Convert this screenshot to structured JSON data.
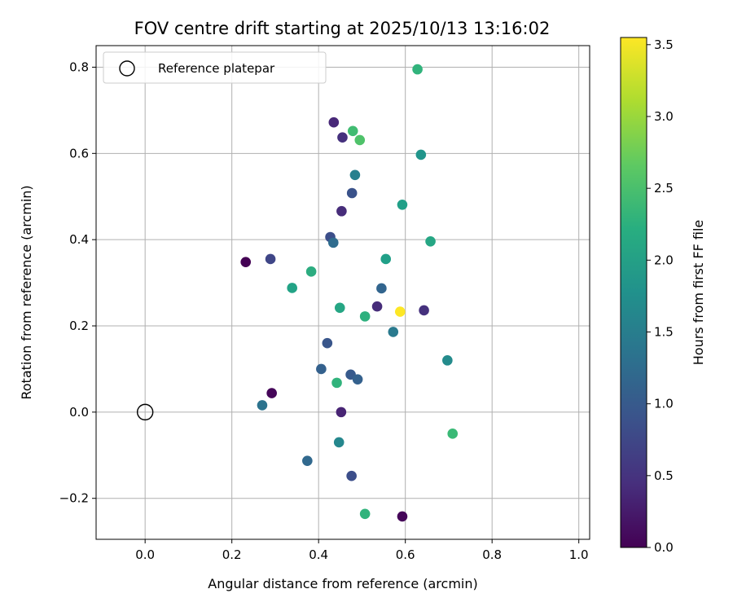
{
  "chart_data": {
    "type": "scatter",
    "title": "FOV centre drift starting at 2025/10/13 13:16:02",
    "xlabel": "Angular distance from reference (arcmin)",
    "ylabel": "Rotation from reference (arcmin)",
    "xlim": [
      -0.113,
      1.025
    ],
    "ylim": [
      -0.295,
      0.85
    ],
    "xticks": [
      0.0,
      0.2,
      0.4,
      0.6,
      0.8,
      1.0
    ],
    "xtick_labels": [
      "0.0",
      "0.2",
      "0.4",
      "0.6",
      "0.8",
      "1.0"
    ],
    "yticks": [
      -0.2,
      0.0,
      0.2,
      0.4,
      0.6,
      0.8
    ],
    "ytick_labels": [
      "−0.2",
      "0.0",
      "0.2",
      "0.4",
      "0.6",
      "0.8"
    ],
    "grid": true,
    "legend": {
      "position": "top-left",
      "entries": [
        {
          "label": "Reference platepar",
          "marker": "hollow-circle"
        }
      ]
    },
    "reference_point": {
      "x": 0.0,
      "y": 0.0
    },
    "colorbar": {
      "label": "Hours from first FF file",
      "range": [
        0.0,
        3.55
      ],
      "colormap": "viridis",
      "ticks": [
        0.0,
        0.5,
        1.0,
        1.5,
        2.0,
        2.5,
        3.0,
        3.5
      ],
      "tick_labels": [
        "0.0",
        "0.5",
        "1.0",
        "1.5",
        "2.0",
        "2.5",
        "3.0",
        "3.5"
      ]
    },
    "points": [
      {
        "x": 0.628,
        "y": 0.795,
        "hours": 2.3
      },
      {
        "x": 0.435,
        "y": 0.672,
        "hours": 0.4
      },
      {
        "x": 0.479,
        "y": 0.652,
        "hours": 2.45
      },
      {
        "x": 0.455,
        "y": 0.637,
        "hours": 0.5
      },
      {
        "x": 0.495,
        "y": 0.631,
        "hours": 2.55
      },
      {
        "x": 0.636,
        "y": 0.597,
        "hours": 1.85
      },
      {
        "x": 0.484,
        "y": 0.55,
        "hours": 1.55
      },
      {
        "x": 0.477,
        "y": 0.508,
        "hours": 0.9
      },
      {
        "x": 0.593,
        "y": 0.481,
        "hours": 2.0
      },
      {
        "x": 0.453,
        "y": 0.466,
        "hours": 0.45
      },
      {
        "x": 0.427,
        "y": 0.406,
        "hours": 0.85
      },
      {
        "x": 0.658,
        "y": 0.396,
        "hours": 2.1
      },
      {
        "x": 0.434,
        "y": 0.393,
        "hours": 1.25
      },
      {
        "x": 0.555,
        "y": 0.355,
        "hours": 2.0
      },
      {
        "x": 0.289,
        "y": 0.355,
        "hours": 0.75
      },
      {
        "x": 0.232,
        "y": 0.348,
        "hours": 0.0
      },
      {
        "x": 0.383,
        "y": 0.326,
        "hours": 2.2
      },
      {
        "x": 0.339,
        "y": 0.288,
        "hours": 2.05
      },
      {
        "x": 0.545,
        "y": 0.287,
        "hours": 1.15
      },
      {
        "x": 0.535,
        "y": 0.245,
        "hours": 0.45
      },
      {
        "x": 0.449,
        "y": 0.242,
        "hours": 2.1
      },
      {
        "x": 0.588,
        "y": 0.233,
        "hours": 3.55
      },
      {
        "x": 0.643,
        "y": 0.236,
        "hours": 0.5
      },
      {
        "x": 0.507,
        "y": 0.222,
        "hours": 2.25
      },
      {
        "x": 0.572,
        "y": 0.186,
        "hours": 1.45
      },
      {
        "x": 0.42,
        "y": 0.16,
        "hours": 0.95
      },
      {
        "x": 0.697,
        "y": 0.12,
        "hours": 1.7
      },
      {
        "x": 0.406,
        "y": 0.1,
        "hours": 1.1
      },
      {
        "x": 0.474,
        "y": 0.087,
        "hours": 1.0
      },
      {
        "x": 0.49,
        "y": 0.076,
        "hours": 1.1
      },
      {
        "x": 0.442,
        "y": 0.068,
        "hours": 2.3
      },
      {
        "x": 0.292,
        "y": 0.044,
        "hours": 0.05
      },
      {
        "x": 0.27,
        "y": 0.016,
        "hours": 1.35
      },
      {
        "x": 0.452,
        "y": 0.0,
        "hours": 0.35
      },
      {
        "x": 0.709,
        "y": -0.05,
        "hours": 2.4
      },
      {
        "x": 0.447,
        "y": -0.07,
        "hours": 1.65
      },
      {
        "x": 0.374,
        "y": -0.113,
        "hours": 1.2
      },
      {
        "x": 0.476,
        "y": -0.148,
        "hours": 0.85
      },
      {
        "x": 0.507,
        "y": -0.236,
        "hours": 2.3
      },
      {
        "x": 0.593,
        "y": -0.242,
        "hours": 0.05
      }
    ]
  }
}
